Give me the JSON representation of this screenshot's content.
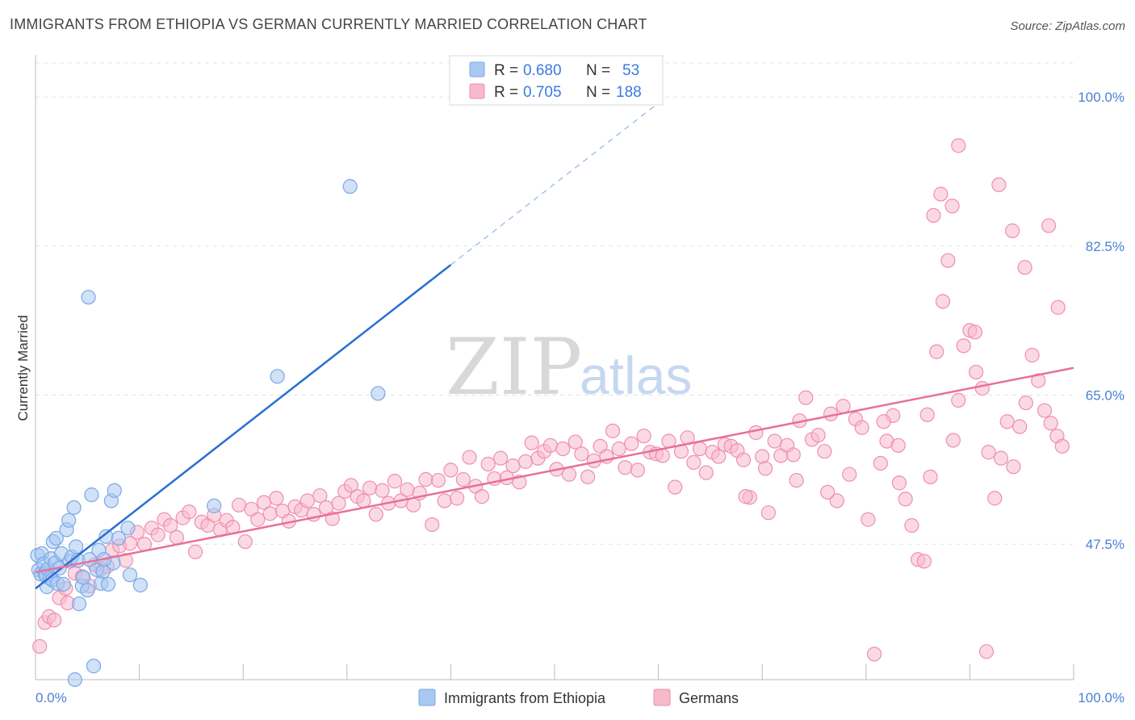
{
  "header": {
    "title": "IMMIGRANTS FROM ETHIOPIA VS GERMAN CURRENTLY MARRIED CORRELATION CHART",
    "source": "Source: ZipAtlas.com"
  },
  "watermark": {
    "zip": "ZIP",
    "atlas": "atlas"
  },
  "stats": {
    "rows": [
      {
        "r_label": "R =",
        "r_value": "0.680",
        "n_label": "N =",
        "n_value": "53",
        "color": "#a9c8f2"
      },
      {
        "r_label": "R =",
        "r_value": "0.705",
        "n_label": "N =",
        "n_value": "188",
        "color": "#f7b9cc"
      }
    ]
  },
  "chart_data": {
    "type": "scatter",
    "title": "IMMIGRANTS FROM ETHIOPIA VS GERMAN CURRENTLY MARRIED CORRELATION CHART",
    "xlabel": "",
    "ylabel": "Currently Married",
    "xlim": [
      0,
      100
    ],
    "ylim": [
      31.6,
      104
    ],
    "x_tick_labels": [
      "0.0%",
      "100.0%"
    ],
    "y_ticks": [
      47.5,
      65.0,
      82.5,
      100.0
    ],
    "y_tick_labels": [
      "47.5%",
      "65.0%",
      "82.5%",
      "100.0%"
    ],
    "grid": true,
    "legend_position": "bottom-center",
    "series": [
      {
        "name": "Immigrants from Ethiopia",
        "color": "#a9c8f2",
        "stroke": "#7aa8e6",
        "line_color": "#2a6fd6",
        "trend": {
          "x0": 0,
          "y0": 42.3,
          "x1": 40,
          "y1": 80.3,
          "dash_to_x": 60,
          "dash_to_y": 99.3
        },
        "points": [
          [
            0.2,
            46.2
          ],
          [
            0.3,
            44.5
          ],
          [
            0.5,
            44.0
          ],
          [
            0.6,
            46.4
          ],
          [
            0.8,
            45.2
          ],
          [
            0.9,
            44.1
          ],
          [
            1.0,
            43.8
          ],
          [
            1.1,
            42.5
          ],
          [
            1.2,
            44.6
          ],
          [
            1.4,
            43.5
          ],
          [
            1.5,
            45.8
          ],
          [
            1.6,
            43.3
          ],
          [
            1.7,
            47.8
          ],
          [
            1.9,
            45.3
          ],
          [
            2.0,
            48.2
          ],
          [
            2.1,
            42.9
          ],
          [
            2.3,
            44.7
          ],
          [
            2.5,
            46.4
          ],
          [
            2.7,
            42.8
          ],
          [
            3.0,
            49.2
          ],
          [
            3.2,
            50.3
          ],
          [
            3.3,
            45.5
          ],
          [
            3.5,
            46.0
          ],
          [
            3.7,
            51.8
          ],
          [
            3.9,
            47.2
          ],
          [
            4.1,
            45.6
          ],
          [
            4.2,
            40.5
          ],
          [
            4.5,
            42.6
          ],
          [
            5.0,
            42.1
          ],
          [
            5.2,
            45.7
          ],
          [
            5.4,
            53.3
          ],
          [
            5.6,
            33.2
          ],
          [
            5.9,
            44.5
          ],
          [
            6.1,
            46.8
          ],
          [
            6.3,
            42.9
          ],
          [
            6.5,
            44.3
          ],
          [
            6.8,
            48.4
          ],
          [
            7.0,
            42.8
          ],
          [
            7.3,
            52.6
          ],
          [
            7.5,
            45.3
          ],
          [
            7.6,
            53.8
          ],
          [
            8.0,
            48.2
          ],
          [
            8.9,
            49.4
          ],
          [
            9.1,
            43.9
          ],
          [
            10.1,
            42.7
          ],
          [
            3.8,
            31.6
          ],
          [
            5.1,
            76.5
          ],
          [
            17.2,
            52.0
          ],
          [
            23.3,
            67.2
          ],
          [
            30.3,
            89.5
          ],
          [
            33.0,
            65.2
          ],
          [
            6.6,
            45.7
          ],
          [
            4.6,
            43.6
          ]
        ]
      },
      {
        "name": "Germans",
        "color": "#f7b9cc",
        "stroke": "#ee8fae",
        "line_color": "#e8709a",
        "trend": {
          "x0": 0,
          "y0": 44.2,
          "x1": 100,
          "y1": 68.2
        },
        "points": [
          [
            0.4,
            35.5
          ],
          [
            0.9,
            38.3
          ],
          [
            1.3,
            39.0
          ],
          [
            1.8,
            38.6
          ],
          [
            2.3,
            41.2
          ],
          [
            2.9,
            42.3
          ],
          [
            3.1,
            40.6
          ],
          [
            3.8,
            44.1
          ],
          [
            4.5,
            43.7
          ],
          [
            5.2,
            42.6
          ],
          [
            5.7,
            45.1
          ],
          [
            6.3,
            44.6
          ],
          [
            6.9,
            44.9
          ],
          [
            7.4,
            46.8
          ],
          [
            8.1,
            47.3
          ],
          [
            8.7,
            45.6
          ],
          [
            9.1,
            47.6
          ],
          [
            9.8,
            48.9
          ],
          [
            10.5,
            47.5
          ],
          [
            11.2,
            49.4
          ],
          [
            11.8,
            48.6
          ],
          [
            12.4,
            50.4
          ],
          [
            13.0,
            49.7
          ],
          [
            13.6,
            48.3
          ],
          [
            14.2,
            50.6
          ],
          [
            14.8,
            51.3
          ],
          [
            15.4,
            46.6
          ],
          [
            16.0,
            50.1
          ],
          [
            16.6,
            49.7
          ],
          [
            17.2,
            50.9
          ],
          [
            17.8,
            49.2
          ],
          [
            18.4,
            50.3
          ],
          [
            19.0,
            49.5
          ],
          [
            19.6,
            52.1
          ],
          [
            20.2,
            47.8
          ],
          [
            20.8,
            51.6
          ],
          [
            21.4,
            50.4
          ],
          [
            22.0,
            52.4
          ],
          [
            22.6,
            51.1
          ],
          [
            23.2,
            52.9
          ],
          [
            23.8,
            51.4
          ],
          [
            24.4,
            50.2
          ],
          [
            25.0,
            51.9
          ],
          [
            25.6,
            51.5
          ],
          [
            26.2,
            52.6
          ],
          [
            26.8,
            51.0
          ],
          [
            27.4,
            53.2
          ],
          [
            28.0,
            51.8
          ],
          [
            28.6,
            50.5
          ],
          [
            29.2,
            52.3
          ],
          [
            29.8,
            53.7
          ],
          [
            30.4,
            54.4
          ],
          [
            31.0,
            53.1
          ],
          [
            31.6,
            52.6
          ],
          [
            32.2,
            54.1
          ],
          [
            32.8,
            51.0
          ],
          [
            33.4,
            53.8
          ],
          [
            34.0,
            52.3
          ],
          [
            34.6,
            54.9
          ],
          [
            35.2,
            52.6
          ],
          [
            35.8,
            53.9
          ],
          [
            36.4,
            52.1
          ],
          [
            37.0,
            53.5
          ],
          [
            37.6,
            55.1
          ],
          [
            38.2,
            49.8
          ],
          [
            38.8,
            55.0
          ],
          [
            39.4,
            52.6
          ],
          [
            40.0,
            56.2
          ],
          [
            40.6,
            52.9
          ],
          [
            41.2,
            55.1
          ],
          [
            41.8,
            57.7
          ],
          [
            42.4,
            54.3
          ],
          [
            43.0,
            53.1
          ],
          [
            43.6,
            56.9
          ],
          [
            44.2,
            55.2
          ],
          [
            44.8,
            57.6
          ],
          [
            45.4,
            55.3
          ],
          [
            46.0,
            56.7
          ],
          [
            46.6,
            54.8
          ],
          [
            47.2,
            57.2
          ],
          [
            47.8,
            59.4
          ],
          [
            48.4,
            57.6
          ],
          [
            49.0,
            58.4
          ],
          [
            49.6,
            59.1
          ],
          [
            50.2,
            56.3
          ],
          [
            50.8,
            58.7
          ],
          [
            51.4,
            55.7
          ],
          [
            52.0,
            59.5
          ],
          [
            52.6,
            58.1
          ],
          [
            53.2,
            55.4
          ],
          [
            53.8,
            57.3
          ],
          [
            54.4,
            59.0
          ],
          [
            55.0,
            57.8
          ],
          [
            55.6,
            60.8
          ],
          [
            56.2,
            58.7
          ],
          [
            56.8,
            56.5
          ],
          [
            57.4,
            59.3
          ],
          [
            58.0,
            56.2
          ],
          [
            58.6,
            60.2
          ],
          [
            59.2,
            58.3
          ],
          [
            59.8,
            58.1
          ],
          [
            60.4,
            57.9
          ],
          [
            61.0,
            59.6
          ],
          [
            61.6,
            54.2
          ],
          [
            62.2,
            58.4
          ],
          [
            62.8,
            60.0
          ],
          [
            63.4,
            57.1
          ],
          [
            64.0,
            58.7
          ],
          [
            64.6,
            55.9
          ],
          [
            65.2,
            58.3
          ],
          [
            65.8,
            57.8
          ],
          [
            66.4,
            59.2
          ],
          [
            67.0,
            59.0
          ],
          [
            67.6,
            58.5
          ],
          [
            68.2,
            57.4
          ],
          [
            68.8,
            53.0
          ],
          [
            69.4,
            60.6
          ],
          [
            70.0,
            57.8
          ],
          [
            70.6,
            51.2
          ],
          [
            71.2,
            59.6
          ],
          [
            71.8,
            57.9
          ],
          [
            72.4,
            59.1
          ],
          [
            73.0,
            58.0
          ],
          [
            73.6,
            62.0
          ],
          [
            74.2,
            64.7
          ],
          [
            74.8,
            59.8
          ],
          [
            75.4,
            60.3
          ],
          [
            76.0,
            58.4
          ],
          [
            76.6,
            62.8
          ],
          [
            77.2,
            52.6
          ],
          [
            77.8,
            63.7
          ],
          [
            78.4,
            55.7
          ],
          [
            79.0,
            62.2
          ],
          [
            79.6,
            61.2
          ],
          [
            80.2,
            50.4
          ],
          [
            80.8,
            34.6
          ],
          [
            81.4,
            57.0
          ],
          [
            82.0,
            59.6
          ],
          [
            82.6,
            62.6
          ],
          [
            83.2,
            54.7
          ],
          [
            83.8,
            52.8
          ],
          [
            84.4,
            49.7
          ],
          [
            85.0,
            45.7
          ],
          [
            85.6,
            45.5
          ],
          [
            86.2,
            55.4
          ],
          [
            86.8,
            70.1
          ],
          [
            87.4,
            76.0
          ],
          [
            87.9,
            80.8
          ],
          [
            88.4,
            59.7
          ],
          [
            88.9,
            64.4
          ],
          [
            89.4,
            70.8
          ],
          [
            90.0,
            72.6
          ],
          [
            90.6,
            67.7
          ],
          [
            91.2,
            65.8
          ],
          [
            91.8,
            58.3
          ],
          [
            92.4,
            52.9
          ],
          [
            93.0,
            57.6
          ],
          [
            93.6,
            61.9
          ],
          [
            94.2,
            56.6
          ],
          [
            94.8,
            61.3
          ],
          [
            95.4,
            64.1
          ],
          [
            96.0,
            69.7
          ],
          [
            96.6,
            66.7
          ],
          [
            97.2,
            63.2
          ],
          [
            97.8,
            61.7
          ],
          [
            98.4,
            60.2
          ],
          [
            98.9,
            59.0
          ],
          [
            85.9,
            62.7
          ],
          [
            86.5,
            86.1
          ],
          [
            87.2,
            88.6
          ],
          [
            88.3,
            87.2
          ],
          [
            88.9,
            94.3
          ],
          [
            90.5,
            72.4
          ],
          [
            92.8,
            89.7
          ],
          [
            94.1,
            84.3
          ],
          [
            95.3,
            80.0
          ],
          [
            97.6,
            84.9
          ],
          [
            98.5,
            75.3
          ],
          [
            91.6,
            34.9
          ],
          [
            83.1,
            59.1
          ],
          [
            81.7,
            61.9
          ],
          [
            76.3,
            53.6
          ],
          [
            70.3,
            56.4
          ],
          [
            73.3,
            55.0
          ],
          [
            68.4,
            53.1
          ]
        ]
      }
    ]
  },
  "legend": {
    "items": [
      {
        "label": "Immigrants from Ethiopia",
        "color": "#a9c8f2"
      },
      {
        "label": "Germans",
        "color": "#f7b9cc"
      }
    ]
  }
}
